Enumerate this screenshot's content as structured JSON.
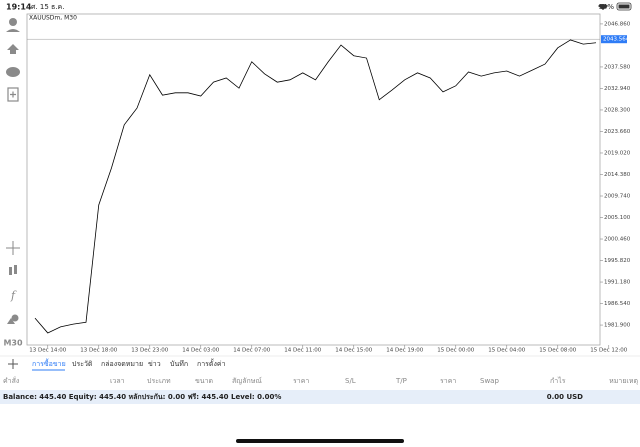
{
  "status_bar": {
    "time": "19:14",
    "date": "ศ. 15 ธ.ค.",
    "battery": "94%"
  },
  "timeframe": "M30",
  "chart_data": {
    "type": "line",
    "title": "XAUUSDm, M30",
    "categories": [
      null,
      "13 Dec 14:00",
      null,
      null,
      null,
      "13 Dec 18:00",
      null,
      null,
      null,
      "13 Dec 23:00",
      null,
      null,
      null,
      "14 Dec 03:00",
      null,
      null,
      null,
      "14 Dec 07:00",
      null,
      null,
      null,
      "14 Dec 11:00",
      null,
      null,
      null,
      "14 Dec 15:00",
      null,
      null,
      null,
      "14 Dec 19:00",
      null,
      null,
      null,
      "15 Dec 00:00",
      null,
      null,
      null,
      "15 Dec 04:00",
      null,
      null,
      null,
      "15 Dec 08:00",
      null,
      null,
      null,
      "15 Dec 12:00"
    ],
    "series": [
      {
        "name": "XAUUSDm",
        "color": "#000000",
        "values": [
          1983.4,
          1980.2,
          1981.5,
          1982.1,
          1982.5,
          2007.8,
          2015.8,
          2025.1,
          2028.7,
          2035.9,
          2031.5,
          2032.0,
          2032.0,
          2031.3,
          2034.3,
          2035.2,
          2033.0,
          2038.7,
          2036.1,
          2034.3,
          2034.8,
          2036.3,
          2034.8,
          2038.7,
          2042.3,
          2040.0,
          2039.5,
          2030.5,
          2032.6,
          2034.8,
          2036.3,
          2035.2,
          2032.2,
          2033.5,
          2036.5,
          2035.6,
          2036.3,
          2036.7,
          2035.6,
          2036.9,
          2038.2,
          2041.7,
          2043.4,
          2042.5,
          2042.8,
          null
        ]
      }
    ],
    "ylim": [
      1977.6,
      2049.0
    ],
    "yticks": [
      {
        "value": 1981.9,
        "label": "1981.900"
      },
      {
        "value": 1986.54,
        "label": "1986.540"
      },
      {
        "value": 1991.18,
        "label": "1991.180"
      },
      {
        "value": 1995.82,
        "label": "1995.820"
      },
      {
        "value": 2000.46,
        "label": "2000.460"
      },
      {
        "value": 2005.1,
        "label": "2005.100"
      },
      {
        "value": 2009.74,
        "label": "2009.740"
      },
      {
        "value": 2014.38,
        "label": "2014.380"
      },
      {
        "value": 2019.02,
        "label": "2019.020"
      },
      {
        "value": 2023.66,
        "label": "2023.660"
      },
      {
        "value": 2028.3,
        "label": "2028.300"
      },
      {
        "value": 2032.94,
        "label": "2032.940"
      },
      {
        "value": 2037.58,
        "label": "2037.580"
      },
      {
        "value": 2046.86,
        "label": "2046.860"
      }
    ],
    "current_price": 2043.564,
    "current_price_color": "#2f7cf6",
    "grid": false
  },
  "tabs": [
    "การซื้อขาย",
    "ประวัติ",
    "กล่องจดหมาย",
    "ข่าว",
    "บันทึก",
    "การตั้งค่า"
  ],
  "columns": [
    "คำสั่ง",
    "เวลา",
    "ประเภท",
    "ขนาด",
    "สัญลักษณ์",
    "ราคา",
    "S/L",
    "T/P",
    "ราคา",
    "Swap",
    "กำไร",
    "หมายเหตุ"
  ],
  "balance": {
    "summary": "Balance: 445.40 Equity: 445.40 หลักประกัน: 0.00 ฟรี: 445.40 Level: 0.00%",
    "total": "0.00 USD"
  }
}
